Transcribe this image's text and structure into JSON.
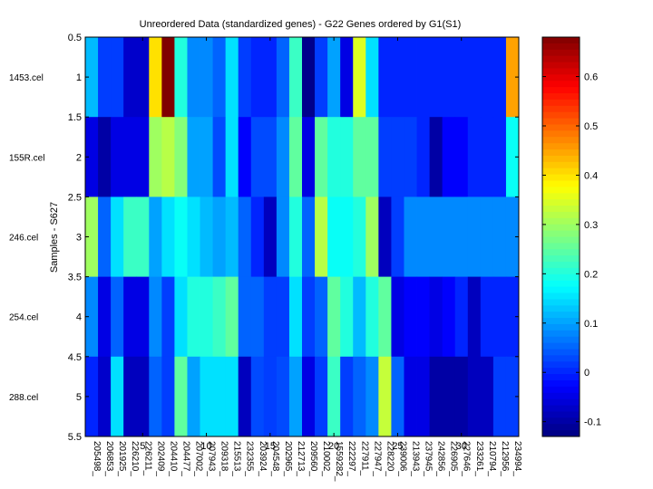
{
  "chart_data": {
    "type": "heatmap",
    "title": "Unreordered Data (standardized genes) - G22 Genes ordered by G1(S1)",
    "ylabel": "Samples - S627",
    "xlabel": "",
    "row_labels": [
      "1453.cel",
      "155R.cel",
      "246.cel",
      "254.cel",
      "288.cel"
    ],
    "column_labels": [
      "205498_",
      "206853_",
      "201925_",
      "226210_",
      "226211_",
      "202409_",
      "204410_",
      "204477_",
      "207002_",
      "207943_",
      "209318_",
      "215513_",
      "232355_",
      "203924_",
      "204548_",
      "202965_",
      "212713_",
      "209560_",
      "210002_",
      "1559282_",
      "222297_",
      "227911_",
      "227947_",
      "228220_",
      "239006_",
      "213943_",
      "237945_",
      "242856_",
      "226905_",
      "227646_",
      "233261_",
      "210794_",
      "212956_",
      "234994_"
    ],
    "y_ticks": [
      0.5,
      1,
      1.5,
      2,
      2.5,
      3,
      3.5,
      4,
      4.5,
      5,
      5.5
    ],
    "x_ticks": [
      5,
      10,
      15,
      20,
      25,
      30
    ],
    "ylim": [
      0.5,
      5.5
    ],
    "xlim": [
      0.5,
      34.5
    ],
    "colorbar": {
      "colormap": "jet",
      "range": [
        -0.13,
        0.68
      ],
      "ticks": [
        -0.1,
        0,
        0.1,
        0.2,
        0.3,
        0.4,
        0.5,
        0.6
      ]
    },
    "values": [
      [
        0.12,
        0.02,
        0.02,
        -0.07,
        -0.07,
        0.4,
        0.68,
        0.2,
        0.08,
        0.08,
        0.05,
        0.15,
        0.02,
        0.0,
        0.0,
        0.05,
        0.22,
        -0.12,
        0.02,
        0.1,
        -0.05,
        0.35,
        0.15,
        0.0,
        0.0,
        0.0,
        0.0,
        0.0,
        0.0,
        0.0,
        0.0,
        0.0,
        0.0,
        0.45
      ],
      [
        -0.05,
        -0.1,
        -0.05,
        -0.05,
        -0.05,
        0.3,
        0.32,
        0.28,
        0.1,
        0.1,
        0.03,
        0.15,
        -0.03,
        0.03,
        0.03,
        0.08,
        0.25,
        -0.05,
        0.25,
        0.2,
        0.2,
        0.25,
        0.25,
        0.02,
        0.02,
        0.02,
        0.0,
        -0.1,
        -0.03,
        -0.03,
        0.0,
        0.0,
        0.0,
        0.18
      ],
      [
        0.3,
        0.05,
        0.15,
        0.22,
        0.22,
        0.1,
        0.15,
        0.18,
        0.15,
        0.12,
        0.1,
        0.12,
        0.05,
        0.0,
        -0.08,
        0.08,
        0.2,
        0.05,
        0.32,
        0.18,
        0.18,
        0.2,
        0.3,
        -0.08,
        0.02,
        0.08,
        0.08,
        0.08,
        0.08,
        0.08,
        0.08,
        0.08,
        0.08,
        0.08
      ],
      [
        0.08,
        -0.05,
        0.05,
        -0.05,
        -0.05,
        0.08,
        0.02,
        0.15,
        0.2,
        0.2,
        0.22,
        0.25,
        0.05,
        0.05,
        0.02,
        0.02,
        0.15,
        0.02,
        0.05,
        0.25,
        0.2,
        0.12,
        0.2,
        0.25,
        -0.05,
        -0.03,
        -0.03,
        -0.05,
        -0.03,
        0.0,
        -0.08,
        0.0,
        0.0,
        0.0
      ],
      [
        0.0,
        -0.07,
        0.15,
        -0.08,
        -0.08,
        0.05,
        0.02,
        0.25,
        0.1,
        0.15,
        0.15,
        0.15,
        -0.08,
        0.03,
        0.02,
        0.03,
        0.1,
        -0.05,
        0.02,
        0.22,
        0.02,
        0.05,
        0.08,
        0.33,
        0.05,
        -0.05,
        -0.05,
        -0.1,
        -0.1,
        -0.1,
        -0.08,
        -0.08,
        0.02,
        0.02
      ]
    ]
  }
}
